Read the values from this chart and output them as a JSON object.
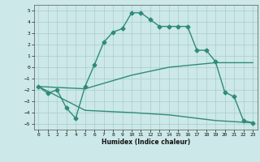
{
  "title": "",
  "xlabel": "Humidex (Indice chaleur)",
  "bg_color": "#cce8e8",
  "line_color": "#2e8b7a",
  "grid_color": "#aacccc",
  "xlim": [
    -0.5,
    23.5
  ],
  "ylim": [
    -5.5,
    5.5
  ],
  "xticks": [
    0,
    1,
    2,
    3,
    4,
    5,
    6,
    7,
    8,
    9,
    10,
    11,
    12,
    13,
    14,
    15,
    16,
    17,
    18,
    19,
    20,
    21,
    22,
    23
  ],
  "yticks": [
    -5,
    -4,
    -3,
    -2,
    -1,
    0,
    1,
    2,
    3,
    4,
    5
  ],
  "line1_x": [
    0,
    1,
    2,
    3,
    4,
    5,
    6,
    7,
    8,
    9,
    10,
    11,
    12,
    13,
    14,
    15,
    16,
    17,
    18,
    19,
    20,
    21,
    22,
    23
  ],
  "line1_y": [
    -1.7,
    -2.3,
    -2.0,
    -3.6,
    -4.5,
    -1.7,
    0.2,
    2.2,
    3.1,
    3.4,
    4.8,
    4.8,
    4.2,
    3.6,
    3.6,
    3.6,
    3.6,
    1.5,
    1.5,
    0.5,
    -2.2,
    -2.6,
    -4.7,
    -4.9
  ],
  "line2_x": [
    0,
    5,
    10,
    14,
    19,
    23
  ],
  "line2_y": [
    -1.7,
    -1.9,
    -0.7,
    0.0,
    0.4,
    0.4
  ],
  "line3_x": [
    0,
    5,
    10,
    14,
    19,
    23
  ],
  "line3_y": [
    -1.7,
    -3.8,
    -4.0,
    -4.2,
    -4.7,
    -4.9
  ],
  "marker": "D",
  "marker_size": 2.5,
  "line_width": 1.0
}
